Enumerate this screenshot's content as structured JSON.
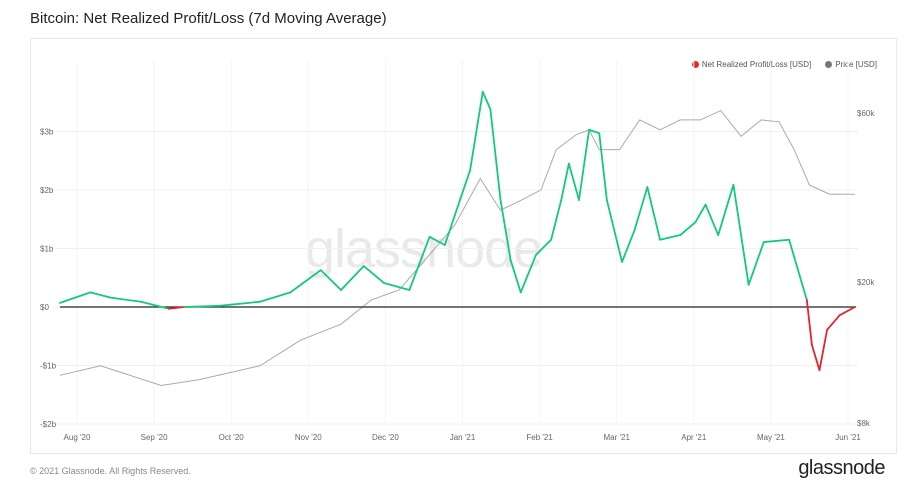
{
  "title": "Bitcoin: Net Realized Profit/Loss (7d Moving Average)",
  "footer": "© 2021 Glassnode. All Rights Reserved.",
  "brand": "glassnode",
  "colors": {
    "profit": "#13c97e",
    "loss": "#e8242a",
    "price": "#aaaaaa",
    "zero": "#222222"
  },
  "chart_data": {
    "type": "line",
    "title": "Bitcoin: Net Realized Profit/Loss (7d Moving Average)",
    "x_unit": "days since 2020-07-24",
    "legend": [
      "Net Realized Profit/Loss [USD]",
      "Price [USD]"
    ],
    "legend_position": "top-right",
    "x_ticks": [
      "Aug '20",
      "Sep '20",
      "Oct '20",
      "Nov '20",
      "Dec '20",
      "Jan '21",
      "Feb '21",
      "Mar '21",
      "Apr '21",
      "May '21",
      "Jun '21"
    ],
    "y_left": {
      "ticks": [
        "-$2b",
        "-$1b",
        "$0",
        "$1b",
        "$2b",
        "$3b"
      ],
      "tick_values": [
        -2,
        -1,
        0,
        1,
        2,
        3
      ],
      "range": [
        -2,
        3.4
      ],
      "unit": "USD billions"
    },
    "y_right": {
      "ticks": [
        "$8k",
        "$20k",
        "$60k"
      ],
      "tick_values": [
        8,
        20,
        60
      ],
      "scale": "log",
      "unit": "USD thousands"
    },
    "series": [
      {
        "name": "Net Realized Profit/Loss [USD]",
        "x": [
          0,
          12,
          20,
          32,
          43,
          49,
          63,
          79,
          91,
          103,
          111,
          120,
          128,
          138,
          146,
          152,
          158,
          162,
          167,
          170,
          174,
          178,
          182,
          188,
          194,
          198,
          201,
          205,
          209,
          213,
          216,
          222,
          227,
          232,
          237,
          245,
          251,
          255,
          260,
          266,
          272,
          278,
          288,
          295,
          297,
          300,
          303,
          308,
          314
        ],
        "y": [
          0.07,
          0.25,
          0.16,
          0.09,
          -0.03,
          0,
          0.02,
          0.09,
          0.25,
          0.63,
          0.29,
          0.7,
          0.41,
          0.29,
          1.2,
          1.06,
          1.83,
          2.34,
          3.68,
          3.38,
          1.83,
          0.8,
          0.25,
          0.89,
          1.15,
          1.83,
          2.45,
          1.83,
          3.03,
          2.97,
          1.83,
          0.77,
          1.32,
          2.05,
          1.15,
          1.23,
          1.45,
          1.75,
          1.23,
          2.09,
          0.38,
          1.11,
          1.15,
          0.12,
          -0.65,
          -1.08,
          -0.39,
          -0.14,
          0
        ]
      },
      {
        "name": "Price [USD]",
        "x": [
          0,
          16,
          40,
          55,
          79,
          95,
          111,
          123,
          134,
          146,
          156,
          166,
          174,
          182,
          190,
          196,
          204,
          209,
          213,
          221,
          229,
          237,
          245,
          253,
          261,
          269,
          277,
          284,
          290,
          296,
          304,
          314
        ],
        "y": [
          10.9,
          11.6,
          10.2,
          10.6,
          11.6,
          13.7,
          15.2,
          17.8,
          19.0,
          23.9,
          29.0,
          39.2,
          31.9,
          34.0,
          36.4,
          47.3,
          52.2,
          53.8,
          47.3,
          47.3,
          57.4,
          53.8,
          57.4,
          57.4,
          61.0,
          51.6,
          57.4,
          56.7,
          47.3,
          37.6,
          35.4,
          35.4
        ]
      }
    ]
  }
}
